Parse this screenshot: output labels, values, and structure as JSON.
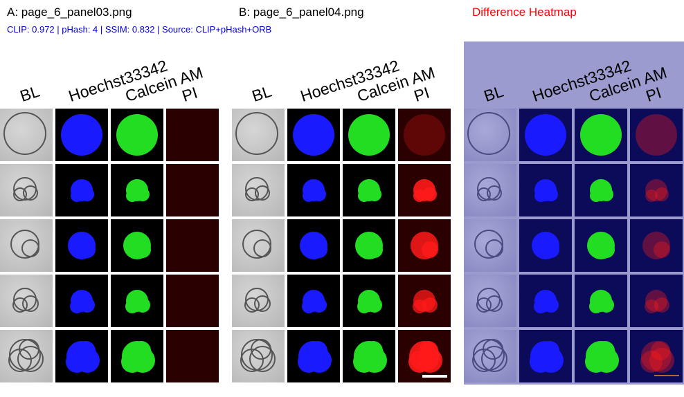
{
  "titles": {
    "a": "A: page_6_panel03.png",
    "b": "B: page_6_panel04.png",
    "heatmap": "Difference Heatmap"
  },
  "metrics": "CLIP: 0.972 | pHash: 4 | SSIM: 0.832 | Source: CLIP+pHash+ORB",
  "columns": [
    "BL",
    "Hoechst33342",
    "Calcein AM",
    "PI"
  ],
  "colors": {
    "title_red": "#ff0000",
    "metrics_blue": "#0000cc",
    "hoechst_blue": "#1a1aff",
    "calcein_green": "#22dd22",
    "pi_red": "#ff1a1a",
    "heatmap_tint": "#9b9bd0"
  }
}
